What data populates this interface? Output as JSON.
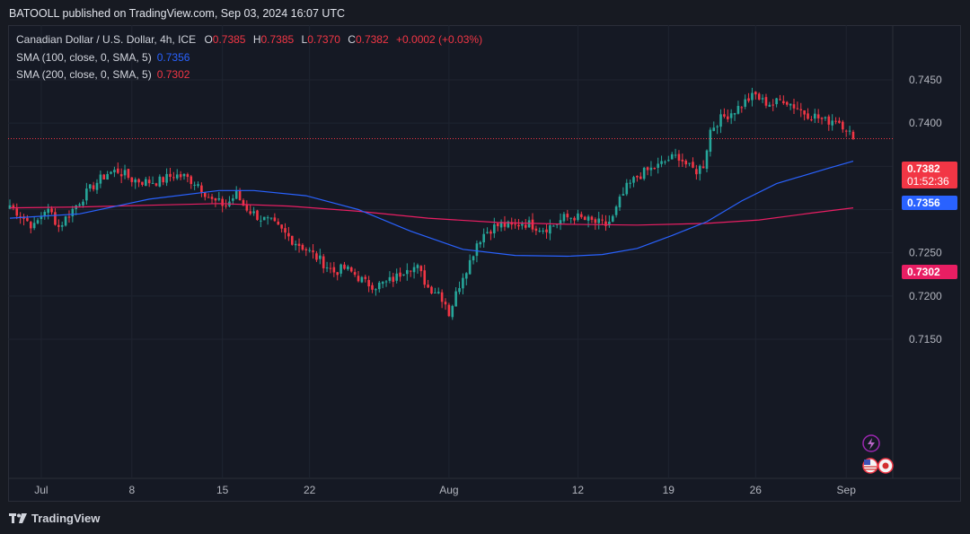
{
  "header": {
    "published": "BATOOLL published on TradingView.com, Sep 03, 2024 16:07 UTC"
  },
  "legend": {
    "symbol": "Canadian Dollar / U.S. Dollar, 4h, ICE",
    "o_label": "O",
    "o_value": "0.7385",
    "h_label": "H",
    "h_value": "0.7385",
    "l_label": "L",
    "l_value": "0.7370",
    "c_label": "C",
    "c_value": "0.7382",
    "change": "+0.0002 (+0.03%)",
    "sma100_label": "SMA (100, close, 0, SMA, 5)",
    "sma100_value": "0.7356",
    "sma200_label": "SMA (200, close, 0, SMA, 5)",
    "sma200_value": "0.7302"
  },
  "price_tags": {
    "last_price": "0.7382",
    "countdown": "01:52:36",
    "sma100": "0.7356",
    "sma200": "0.7302"
  },
  "footer": {
    "brand": "TradingView"
  },
  "colors": {
    "up": "#26a69a",
    "down": "#f23645",
    "sma100": "#2962ff",
    "sma200": "#e91e63",
    "grid": "#1f2430",
    "text": "#b2b5be"
  },
  "chart_data": {
    "type": "candlestick",
    "symbol": "CADUSD",
    "interval": "4h",
    "y_axis": {
      "ticks": [
        0.715,
        0.72,
        0.725,
        0.73,
        0.735,
        0.74,
        0.745
      ],
      "tick_labels": [
        "0.7150",
        "0.7200",
        "0.7250",
        "",
        "",
        "0.7400",
        "0.7450"
      ]
    },
    "x_axis": {
      "tick_labels": [
        "Jul",
        "8",
        "15",
        "22",
        "Aug",
        "12",
        "19",
        "26",
        "Sep"
      ]
    },
    "close_path": [
      [
        0,
        0.7305
      ],
      [
        4,
        0.729
      ],
      [
        7,
        0.728
      ],
      [
        10,
        0.73
      ],
      [
        12,
        0.7295
      ],
      [
        14,
        0.728
      ],
      [
        17,
        0.7295
      ],
      [
        20,
        0.731
      ],
      [
        24,
        0.7328
      ],
      [
        28,
        0.7342
      ],
      [
        31,
        0.7345
      ],
      [
        35,
        0.7335
      ],
      [
        39,
        0.7332
      ],
      [
        43,
        0.7333
      ],
      [
        47,
        0.734
      ],
      [
        50,
        0.7338
      ],
      [
        54,
        0.733
      ],
      [
        56,
        0.732
      ],
      [
        58,
        0.731
      ],
      [
        62,
        0.7305
      ],
      [
        65,
        0.7318
      ],
      [
        67,
        0.7305
      ],
      [
        70,
        0.7295
      ],
      [
        72,
        0.729
      ],
      [
        75,
        0.7285
      ],
      [
        78,
        0.7275
      ],
      [
        81,
        0.7265
      ],
      [
        84,
        0.7257
      ],
      [
        87,
        0.7248
      ],
      [
        90,
        0.7238
      ],
      [
        93,
        0.7228
      ],
      [
        96,
        0.7232
      ],
      [
        99,
        0.7225
      ],
      [
        102,
        0.7215
      ],
      [
        105,
        0.7212
      ],
      [
        108,
        0.7215
      ],
      [
        111,
        0.7222
      ],
      [
        114,
        0.7235
      ],
      [
        117,
        0.7232
      ],
      [
        120,
        0.721
      ],
      [
        123,
        0.7205
      ],
      [
        125,
        0.7192
      ],
      [
        126,
        0.718
      ],
      [
        128,
        0.7202
      ],
      [
        130,
        0.7225
      ],
      [
        132,
        0.724
      ],
      [
        134,
        0.7262
      ],
      [
        136,
        0.7272
      ],
      [
        138,
        0.7278
      ],
      [
        141,
        0.7283
      ],
      [
        144,
        0.728
      ],
      [
        147,
        0.7285
      ],
      [
        150,
        0.7282
      ],
      [
        153,
        0.7278
      ],
      [
        156,
        0.7282
      ],
      [
        159,
        0.729
      ],
      [
        162,
        0.7292
      ],
      [
        165,
        0.7288
      ],
      [
        168,
        0.7285
      ],
      [
        171,
        0.7282
      ],
      [
        173,
        0.729
      ],
      [
        175,
        0.731
      ],
      [
        177,
        0.7325
      ],
      [
        180,
        0.7338
      ],
      [
        183,
        0.7345
      ],
      [
        186,
        0.735
      ],
      [
        189,
        0.7358
      ],
      [
        192,
        0.7362
      ],
      [
        195,
        0.7348
      ],
      [
        197,
        0.7345
      ],
      [
        199,
        0.7352
      ],
      [
        201,
        0.7392
      ],
      [
        203,
        0.7402
      ],
      [
        206,
        0.741
      ],
      [
        209,
        0.7418
      ],
      [
        212,
        0.7428
      ],
      [
        214,
        0.7432
      ],
      [
        216,
        0.7425
      ],
      [
        219,
        0.7422
      ],
      [
        222,
        0.7428
      ],
      [
        225,
        0.742
      ],
      [
        228,
        0.7412
      ],
      [
        231,
        0.7408
      ],
      [
        234,
        0.7402
      ],
      [
        237,
        0.7405
      ],
      [
        240,
        0.7395
      ],
      [
        242,
        0.7382
      ]
    ],
    "sma100_path": [
      [
        0,
        0.729
      ],
      [
        20,
        0.7295
      ],
      [
        40,
        0.7312
      ],
      [
        60,
        0.7322
      ],
      [
        70,
        0.7322
      ],
      [
        85,
        0.7316
      ],
      [
        100,
        0.73
      ],
      [
        115,
        0.7275
      ],
      [
        130,
        0.7254
      ],
      [
        145,
        0.7247
      ],
      [
        160,
        0.7246
      ],
      [
        170,
        0.7248
      ],
      [
        180,
        0.7255
      ],
      [
        190,
        0.727
      ],
      [
        200,
        0.7286
      ],
      [
        210,
        0.731
      ],
      [
        220,
        0.733
      ],
      [
        235,
        0.7348
      ],
      [
        242,
        0.7356
      ]
    ],
    "sma200_path": [
      [
        0,
        0.7302
      ],
      [
        20,
        0.7303
      ],
      [
        40,
        0.7305
      ],
      [
        60,
        0.7307
      ],
      [
        80,
        0.7304
      ],
      [
        100,
        0.7298
      ],
      [
        120,
        0.729
      ],
      [
        140,
        0.7285
      ],
      [
        160,
        0.7283
      ],
      [
        180,
        0.7282
      ],
      [
        200,
        0.7284
      ],
      [
        215,
        0.7288
      ],
      [
        230,
        0.7296
      ],
      [
        242,
        0.7302
      ]
    ]
  }
}
